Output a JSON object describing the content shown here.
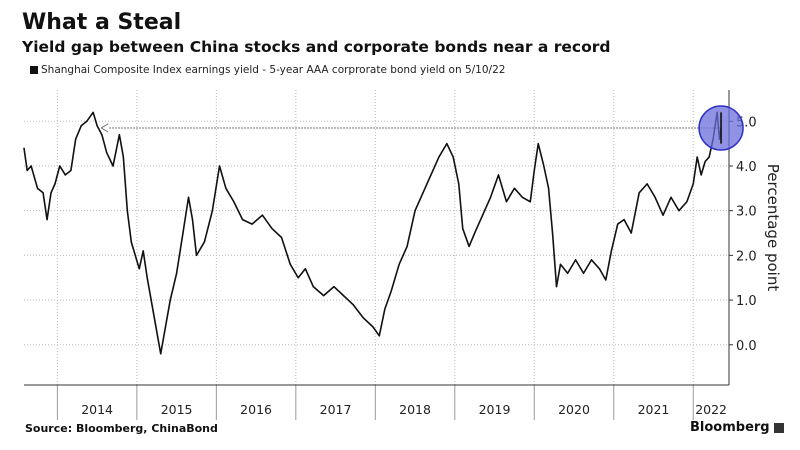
{
  "chart_data": {
    "type": "line",
    "title": "What a Steal",
    "subtitle": "Yield gap between China stocks and corporate bonds near a record",
    "legend": [
      {
        "name": "Shanghai Composite Index earnings yield - 5-year AAA corprorate bond yield on 5/10/22",
        "color": "#111111"
      }
    ],
    "ylabel": "Percentage point",
    "ylim": [
      -0.9,
      5.7
    ],
    "yticks": [
      "0.0",
      "1.0",
      "2.0",
      "3.0",
      "4.0",
      "5.0"
    ],
    "xlim": [
      2013.58,
      2022.45
    ],
    "xticks": [
      "2014",
      "2015",
      "2016",
      "2017",
      "2018",
      "2019",
      "2020",
      "2021",
      "2022"
    ],
    "grid": true,
    "reference_level": 4.85,
    "highlight_color": "#6b6fd9",
    "series": [
      {
        "color": "#111111",
        "x": [
          2013.58,
          2013.62,
          2013.67,
          2013.75,
          2013.82,
          2013.87,
          2013.92,
          2013.97,
          2014.03,
          2014.1,
          2014.17,
          2014.23,
          2014.3,
          2014.37,
          2014.45,
          2014.5,
          2014.56,
          2014.62,
          2014.7,
          2014.78,
          2014.83,
          2014.88,
          2014.93,
          2014.98,
          2015.03,
          2015.08,
          2015.13,
          2015.18,
          2015.23,
          2015.3,
          2015.35,
          2015.42,
          2015.5,
          2015.58,
          2015.65,
          2015.7,
          2015.75,
          2015.85,
          2015.95,
          2016.04,
          2016.12,
          2016.22,
          2016.33,
          2016.45,
          2016.58,
          2016.7,
          2016.82,
          2016.93,
          2017.03,
          2017.12,
          2017.22,
          2017.35,
          2017.48,
          2017.6,
          2017.72,
          2017.85,
          2017.97,
          2018.05,
          2018.12,
          2018.2,
          2018.3,
          2018.4,
          2018.5,
          2018.6,
          2018.7,
          2018.8,
          2018.9,
          2018.98,
          2019.05,
          2019.1,
          2019.18,
          2019.25,
          2019.35,
          2019.45,
          2019.55,
          2019.65,
          2019.75,
          2019.85,
          2019.95,
          2020.0,
          2020.05,
          2020.12,
          2020.18,
          2020.23,
          2020.28,
          2020.33,
          2020.42,
          2020.52,
          2020.62,
          2020.72,
          2020.82,
          2020.9,
          2020.97,
          2021.05,
          2021.13,
          2021.22,
          2021.32,
          2021.42,
          2021.52,
          2021.62,
          2021.72,
          2021.82,
          2021.92,
          2022.0,
          2022.05,
          2022.1,
          2022.15,
          2022.2,
          2022.25,
          2022.3,
          2022.33,
          2022.35
        ],
        "y": [
          4.4,
          3.9,
          4.0,
          3.5,
          3.4,
          2.8,
          3.4,
          3.6,
          4.0,
          3.8,
          3.9,
          4.6,
          4.9,
          5.0,
          5.2,
          4.9,
          4.7,
          4.3,
          4.0,
          4.7,
          4.2,
          3.0,
          2.3,
          2.0,
          1.7,
          2.1,
          1.5,
          1.0,
          0.5,
          -0.2,
          0.3,
          1.0,
          1.6,
          2.5,
          3.3,
          2.8,
          2.0,
          2.3,
          3.0,
          4.0,
          3.5,
          3.2,
          2.8,
          2.7,
          2.9,
          2.6,
          2.4,
          1.8,
          1.5,
          1.7,
          1.3,
          1.1,
          1.3,
          1.1,
          0.9,
          0.6,
          0.4,
          0.2,
          0.8,
          1.2,
          1.8,
          2.2,
          3.0,
          3.4,
          3.8,
          4.2,
          4.5,
          4.2,
          3.6,
          2.6,
          2.2,
          2.5,
          2.9,
          3.3,
          3.8,
          3.2,
          3.5,
          3.3,
          3.2,
          3.9,
          4.5,
          4.0,
          3.5,
          2.5,
          1.3,
          1.8,
          1.6,
          1.9,
          1.6,
          1.9,
          1.7,
          1.45,
          2.1,
          2.7,
          2.8,
          2.5,
          3.4,
          3.6,
          3.3,
          2.9,
          3.3,
          3.0,
          3.2,
          3.6,
          4.2,
          3.8,
          4.1,
          4.2,
          4.6,
          5.2,
          4.6,
          4.85
        ]
      }
    ]
  },
  "footer": {
    "source": "Source: Bloomberg, ChinaBond",
    "brand": "Bloomberg"
  }
}
